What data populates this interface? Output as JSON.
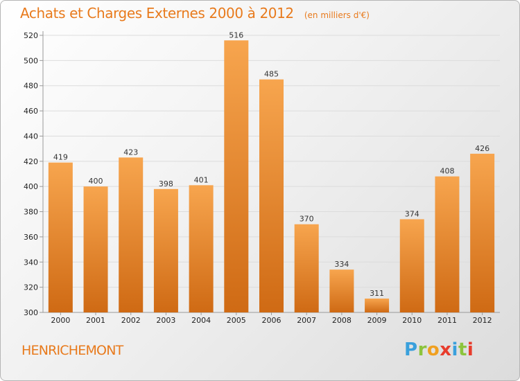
{
  "header": {
    "title": "Achats et Charges Externes 2000 à 2012",
    "subtitle": "(en milliers d'€)"
  },
  "footer": {
    "city": "HENRICHEMONT",
    "logo_text": "Proxiti"
  },
  "colors": {
    "bar_light": "#f7a54e",
    "bar_dark": "#cf6a14",
    "title": "#e87a1c",
    "logo": [
      "#3aa0dc",
      "#8cc43c",
      "#f0a020",
      "#e83c2c",
      "#3aa0dc",
      "#8cc43c",
      "#e83c2c"
    ]
  },
  "chart_data": {
    "type": "bar",
    "categories": [
      "2000",
      "2001",
      "2002",
      "2003",
      "2004",
      "2005",
      "2006",
      "2007",
      "2008",
      "2009",
      "2010",
      "2011",
      "2012"
    ],
    "values": [
      419,
      400,
      423,
      398,
      401,
      516,
      485,
      370,
      334,
      311,
      374,
      408,
      426
    ],
    "ylim": [
      300,
      520
    ],
    "yticks": [
      300,
      320,
      340,
      360,
      380,
      400,
      420,
      440,
      460,
      480,
      500,
      520
    ],
    "grid": true,
    "title": "Achats et Charges Externes 2000 à 2012",
    "xlabel": "",
    "ylabel": ""
  }
}
